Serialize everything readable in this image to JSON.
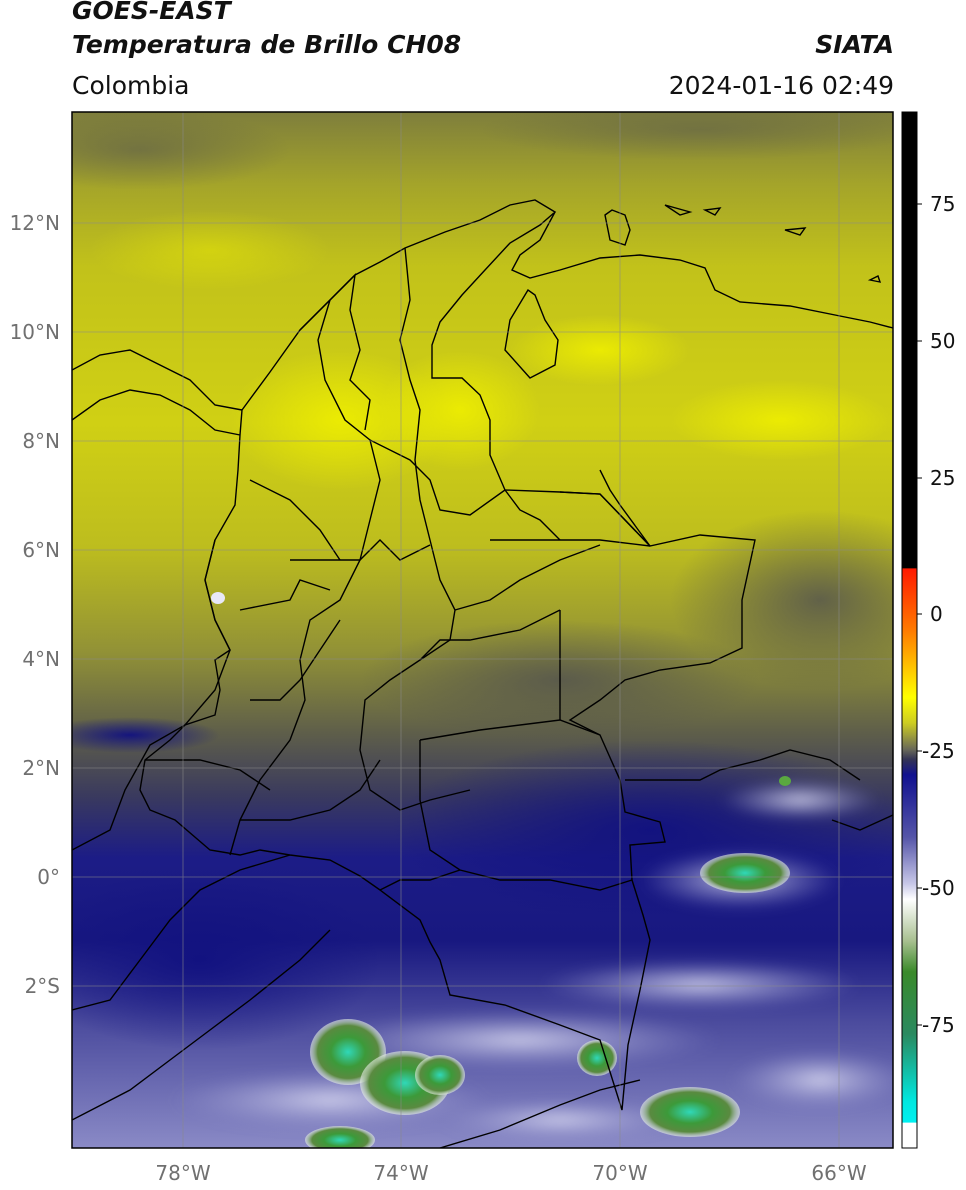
{
  "header": {
    "satellite": "GOES-EAST",
    "product": "Temperatura de Brillo CH08",
    "brand": "SIATA",
    "region": "Colombia",
    "timestamp": "2024-01-16 02:49"
  },
  "map": {
    "lon_range": [
      -80,
      -65
    ],
    "lat_range": [
      -5,
      14
    ],
    "lat_ticks": [
      "12°N",
      "10°N",
      "8°N",
      "6°N",
      "4°N",
      "2°N",
      "0°",
      "2°S"
    ],
    "lon_ticks": [
      "78°W",
      "74°W",
      "70°W",
      "66°W"
    ]
  },
  "colorbar": {
    "ticks": [
      "75",
      "50",
      "25",
      "0",
      "-25",
      "-50",
      "-75"
    ],
    "colors": [
      "#000000",
      "#ff0000",
      "#ff9000",
      "#ffff00",
      "#cccc20",
      "#555555",
      "#1a1a8a",
      "#8888cc",
      "#ffffff",
      "#3c8a2a",
      "#00e0d0",
      "#ffffff"
    ]
  }
}
